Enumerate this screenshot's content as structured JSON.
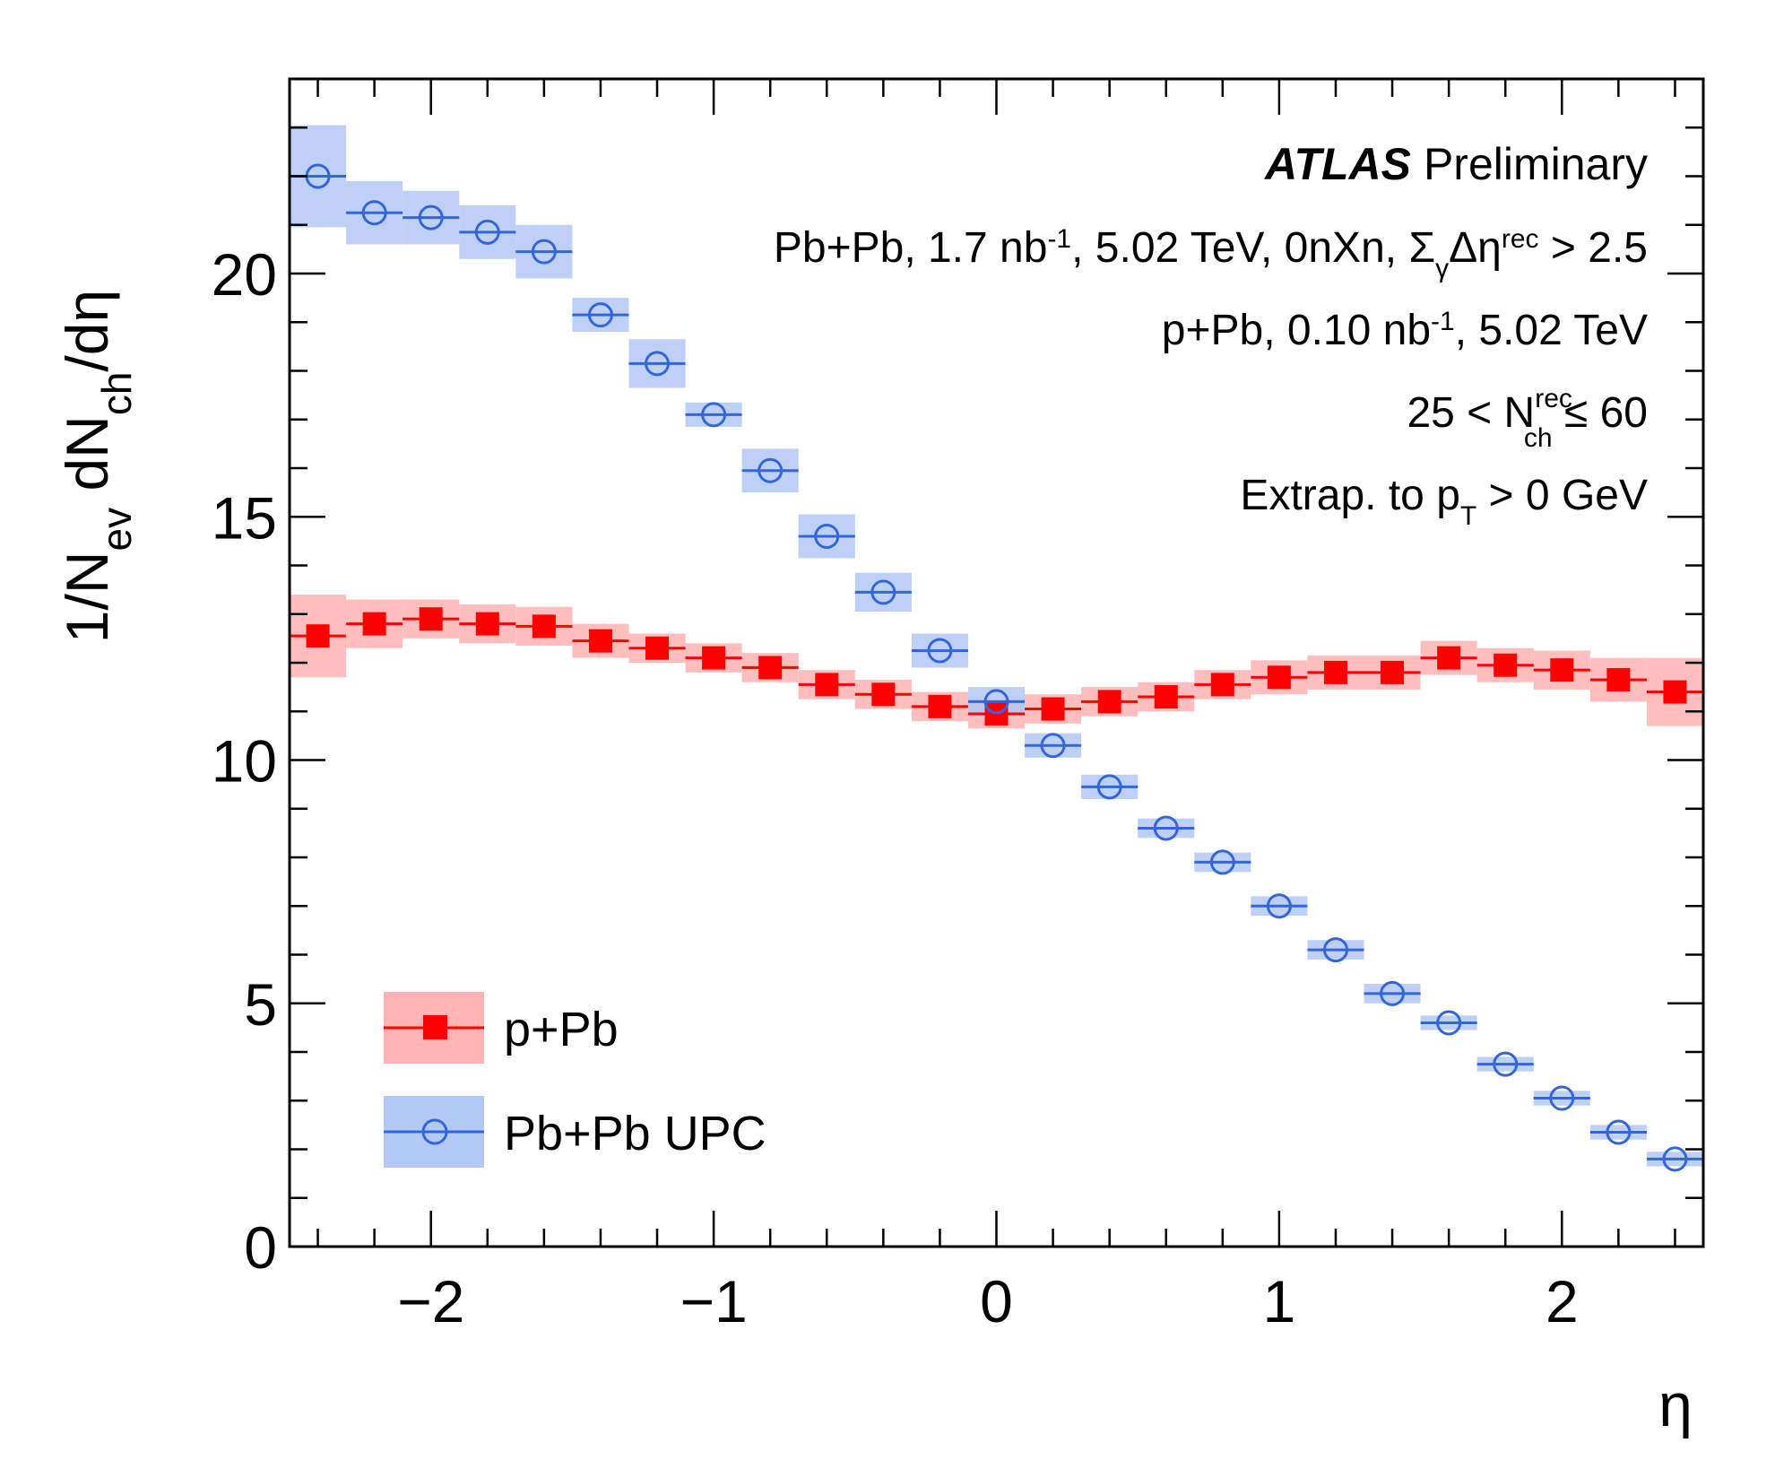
{
  "chart_data": {
    "type": "scatter",
    "xlabel": "η",
    "ylabel_main": "1/N",
    "ylabel_sub1": "ev",
    "ylabel_mid": " dN",
    "ylabel_sub2": "ch",
    "ylabel_tail": "/dη",
    "xlim": [
      -2.5,
      2.5
    ],
    "ylim": [
      0,
      24
    ],
    "x_ticks": [
      {
        "value": -2,
        "label": "−2"
      },
      {
        "value": -1,
        "label": "−1"
      },
      {
        "value": 0,
        "label": "0"
      },
      {
        "value": 1,
        "label": "1"
      },
      {
        "value": 2,
        "label": "2"
      }
    ],
    "y_ticks": [
      {
        "value": 0,
        "label": "0"
      },
      {
        "value": 5,
        "label": "5"
      },
      {
        "value": 10,
        "label": "10"
      },
      {
        "value": 15,
        "label": "15"
      },
      {
        "value": 20,
        "label": "20"
      }
    ],
    "bin_half_width": 0.1,
    "annotations": {
      "atlas": "ATLAS",
      "preliminary": "Preliminary",
      "line1_pre": "Pb+Pb, 1.7 nb",
      "line1_sup1": "-1",
      "line1_mid": ", 5.02 TeV, 0nXn, Σ",
      "line1_sub": "γ",
      "line1_mid2": "Δη",
      "line1_sup2": "rec",
      "line1_post": " > 2.5",
      "line2_pre": "p+Pb, 0.10 nb",
      "line2_sup": "-1",
      "line2_post": ", 5.02 TeV",
      "line3_pre": "25 < N",
      "line3_sup": "rec",
      "line3_sub": "ch",
      "line3_post": " ≤ 60",
      "line4_pre": "Extrap. to p",
      "line4_sub": "T",
      "line4_post": " > 0 GeV"
    },
    "series": [
      {
        "name": "p+Pb",
        "marker": "filled-square",
        "color": "#ff0000",
        "band_color": "#ffb3b3",
        "x": [
          -2.4,
          -2.2,
          -2.0,
          -1.8,
          -1.6,
          -1.4,
          -1.2,
          -1.0,
          -0.8,
          -0.6,
          -0.4,
          -0.2,
          0.0,
          0.2,
          0.4,
          0.6,
          0.8,
          1.0,
          1.2,
          1.4,
          1.6,
          1.8,
          2.0,
          2.2,
          2.4
        ],
        "values": [
          12.55,
          12.8,
          12.9,
          12.8,
          12.75,
          12.45,
          12.3,
          12.1,
          11.9,
          11.55,
          11.35,
          11.1,
          10.95,
          11.05,
          11.2,
          11.3,
          11.55,
          11.7,
          11.8,
          11.8,
          12.1,
          11.95,
          11.85,
          11.65,
          11.4
        ],
        "band_halfheight": [
          0.85,
          0.5,
          0.4,
          0.4,
          0.4,
          0.35,
          0.3,
          0.3,
          0.3,
          0.3,
          0.3,
          0.3,
          0.3,
          0.3,
          0.3,
          0.3,
          0.3,
          0.35,
          0.35,
          0.35,
          0.35,
          0.35,
          0.4,
          0.45,
          0.7
        ]
      },
      {
        "name": "Pb+Pb UPC",
        "marker": "open-circle",
        "color": "#3366dd",
        "band_color": "#b3c8f5",
        "x": [
          -2.4,
          -2.2,
          -2.0,
          -1.8,
          -1.6,
          -1.4,
          -1.2,
          -1.0,
          -0.8,
          -0.6,
          -0.4,
          -0.2,
          0.0,
          0.2,
          0.4,
          0.6,
          0.8,
          1.0,
          1.2,
          1.4,
          1.6,
          1.8,
          2.0,
          2.2,
          2.4
        ],
        "values": [
          22.0,
          21.25,
          21.15,
          20.85,
          20.45,
          19.15,
          18.15,
          17.1,
          15.95,
          14.6,
          13.45,
          12.25,
          11.2,
          10.3,
          9.45,
          8.6,
          7.9,
          7.0,
          6.1,
          5.2,
          4.6,
          3.75,
          3.05,
          2.35,
          1.8
        ],
        "band_halfheight": [
          1.05,
          0.65,
          0.55,
          0.55,
          0.55,
          0.35,
          0.5,
          0.25,
          0.45,
          0.45,
          0.4,
          0.35,
          0.3,
          0.25,
          0.25,
          0.2,
          0.2,
          0.2,
          0.2,
          0.2,
          0.15,
          0.15,
          0.15,
          0.15,
          0.15
        ]
      }
    ],
    "legend_placement": "bottom-left"
  }
}
